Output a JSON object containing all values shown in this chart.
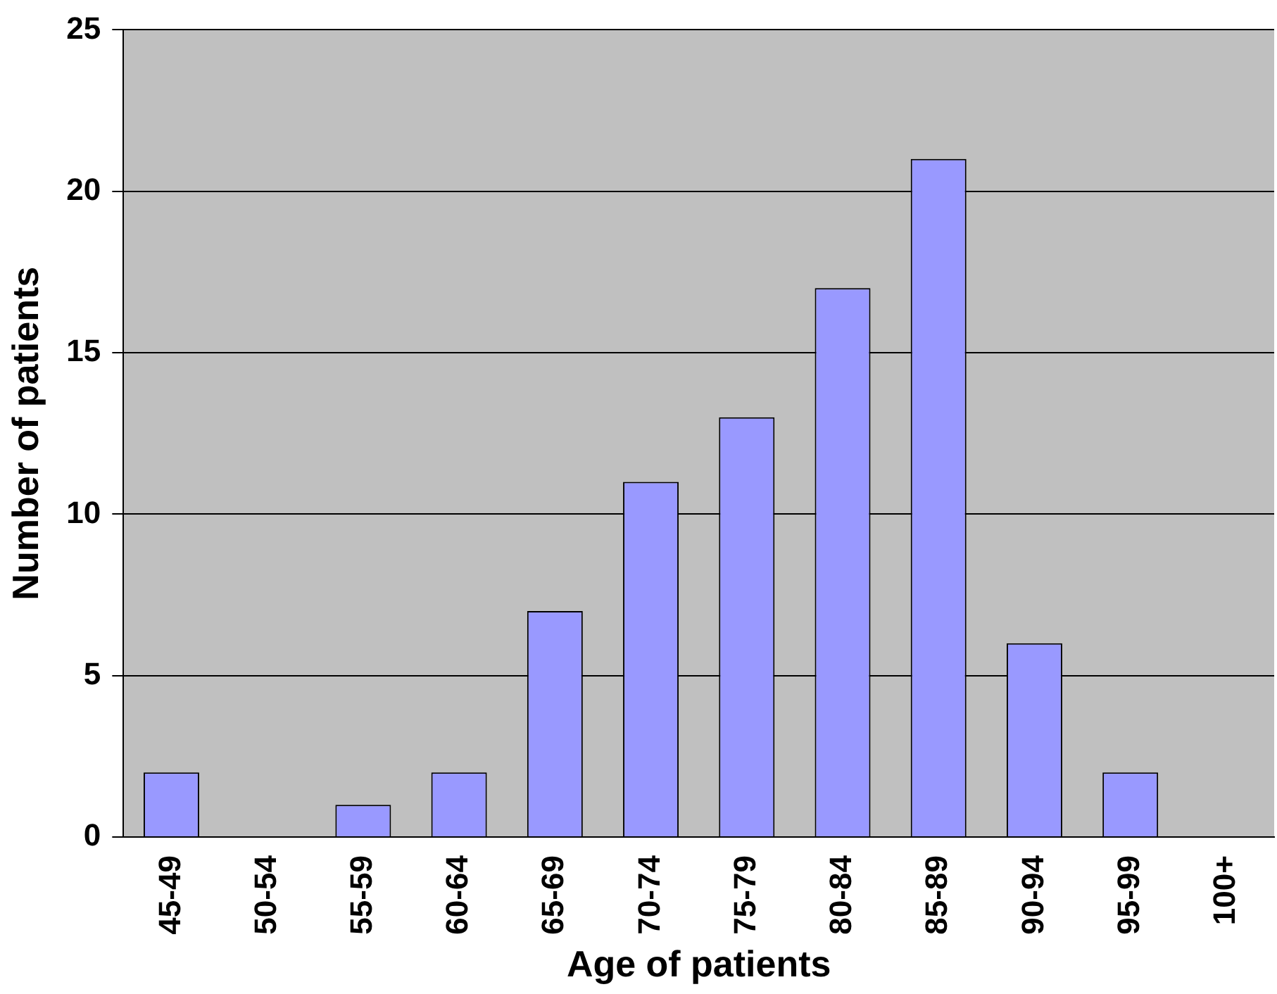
{
  "chart_data": {
    "type": "bar",
    "xlabel": "Age of patients",
    "ylabel": "Number of patients",
    "categories": [
      "45-49",
      "50-54",
      "55-59",
      "60-64",
      "65-69",
      "70-74",
      "75-79",
      "80-84",
      "85-89",
      "90-94",
      "95-99",
      "100+"
    ],
    "values": [
      2,
      0,
      1,
      2,
      7,
      11,
      13,
      17,
      21,
      6,
      2,
      0
    ],
    "color": "#9999ff",
    "ylim": [
      0,
      25
    ],
    "yticks": [
      0,
      5,
      10,
      15,
      20,
      25
    ],
    "grid": "y",
    "legend": false
  }
}
